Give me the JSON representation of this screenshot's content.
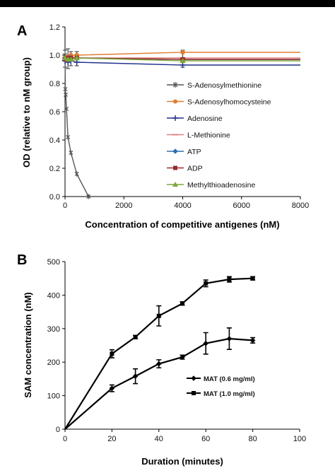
{
  "chart_data": [
    {
      "panel": "A",
      "type": "line",
      "xlabel": "Concentration of competitive antigenes (nM)",
      "ylabel": "OD (relative to nM group)",
      "xlim": [
        0,
        8000
      ],
      "ylim": [
        0,
        1.2
      ],
      "xticks": [
        "0",
        "2000",
        "4000",
        "6000",
        "8000"
      ],
      "yticks": [
        "0.0",
        "0.2",
        "0.4",
        "0.6",
        "0.8",
        "1.0",
        "1.2"
      ],
      "legend_position": "center-right",
      "series": [
        {
          "name": "S-Adenosylmethionine",
          "color": "#555555",
          "marker": "star",
          "x": [
            0,
            10,
            25,
            50,
            100,
            200,
            400,
            800
          ],
          "y": [
            1.0,
            0.76,
            0.72,
            0.62,
            0.42,
            0.31,
            0.16,
            0.0
          ]
        },
        {
          "name": "S-Adenosylhomocysteine",
          "color": "#e07b30",
          "marker": "circle",
          "x": [
            0,
            100,
            200,
            400,
            4000,
            8000
          ],
          "y": [
            0.98,
            0.99,
            1.0,
            1.0,
            1.02,
            1.02
          ]
        },
        {
          "name": "Adenosine",
          "color": "#1f2e8a",
          "marker": "plus",
          "x": [
            0,
            100,
            200,
            400,
            4000,
            8000
          ],
          "y": [
            0.96,
            0.95,
            0.96,
            0.95,
            0.93,
            0.93
          ]
        },
        {
          "name": "L-Methionine",
          "color": "#e08080",
          "marker": "dash",
          "x": [
            0,
            100,
            200,
            400,
            4000,
            8000
          ],
          "y": [
            0.98,
            0.98,
            0.98,
            0.98,
            0.98,
            0.98
          ]
        },
        {
          "name": "ATP",
          "color": "#2f6fb0",
          "marker": "diamond",
          "x": [
            0,
            100,
            200,
            400,
            4000,
            8000
          ],
          "y": [
            0.97,
            0.98,
            0.98,
            0.98,
            0.97,
            0.97
          ]
        },
        {
          "name": "ADP",
          "color": "#9b2a2a",
          "marker": "square",
          "x": [
            0,
            100,
            200,
            400,
            4000,
            8000
          ],
          "y": [
            0.97,
            0.98,
            0.98,
            0.98,
            0.97,
            0.97
          ]
        },
        {
          "name": "Methylthioadenosine",
          "color": "#7ba63a",
          "marker": "triangle",
          "x": [
            0,
            100,
            200,
            400,
            4000,
            8000
          ],
          "y": [
            0.98,
            0.97,
            0.97,
            0.98,
            0.96,
            0.96
          ]
        }
      ]
    },
    {
      "panel": "B",
      "type": "line",
      "xlabel": "Duration (minutes)",
      "ylabel": "SAM concentration (nM)",
      "xlim": [
        0,
        100
      ],
      "ylim": [
        0,
        500
      ],
      "xticks": [
        "0",
        "20",
        "40",
        "60",
        "80",
        "100"
      ],
      "yticks": [
        "0",
        "100",
        "200",
        "300",
        "400",
        "500"
      ],
      "legend_position": "lower-right",
      "series": [
        {
          "name": "MAT (0.6 mg/ml)",
          "color": "#000000",
          "marker": "diamond",
          "x": [
            0,
            20,
            30,
            40,
            50,
            60,
            70,
            80
          ],
          "y": [
            0,
            122,
            158,
            195,
            215,
            256,
            270,
            265
          ],
          "err": [
            0,
            10,
            22,
            12,
            6,
            32,
            32,
            8
          ]
        },
        {
          "name": "MAT (1.0 mg/ml)",
          "color": "#000000",
          "marker": "square",
          "x": [
            0,
            20,
            30,
            40,
            50,
            60,
            70,
            80
          ],
          "y": [
            0,
            225,
            275,
            338,
            375,
            435,
            447,
            450
          ],
          "err": [
            0,
            12,
            5,
            30,
            5,
            10,
            8,
            5
          ]
        }
      ]
    }
  ]
}
